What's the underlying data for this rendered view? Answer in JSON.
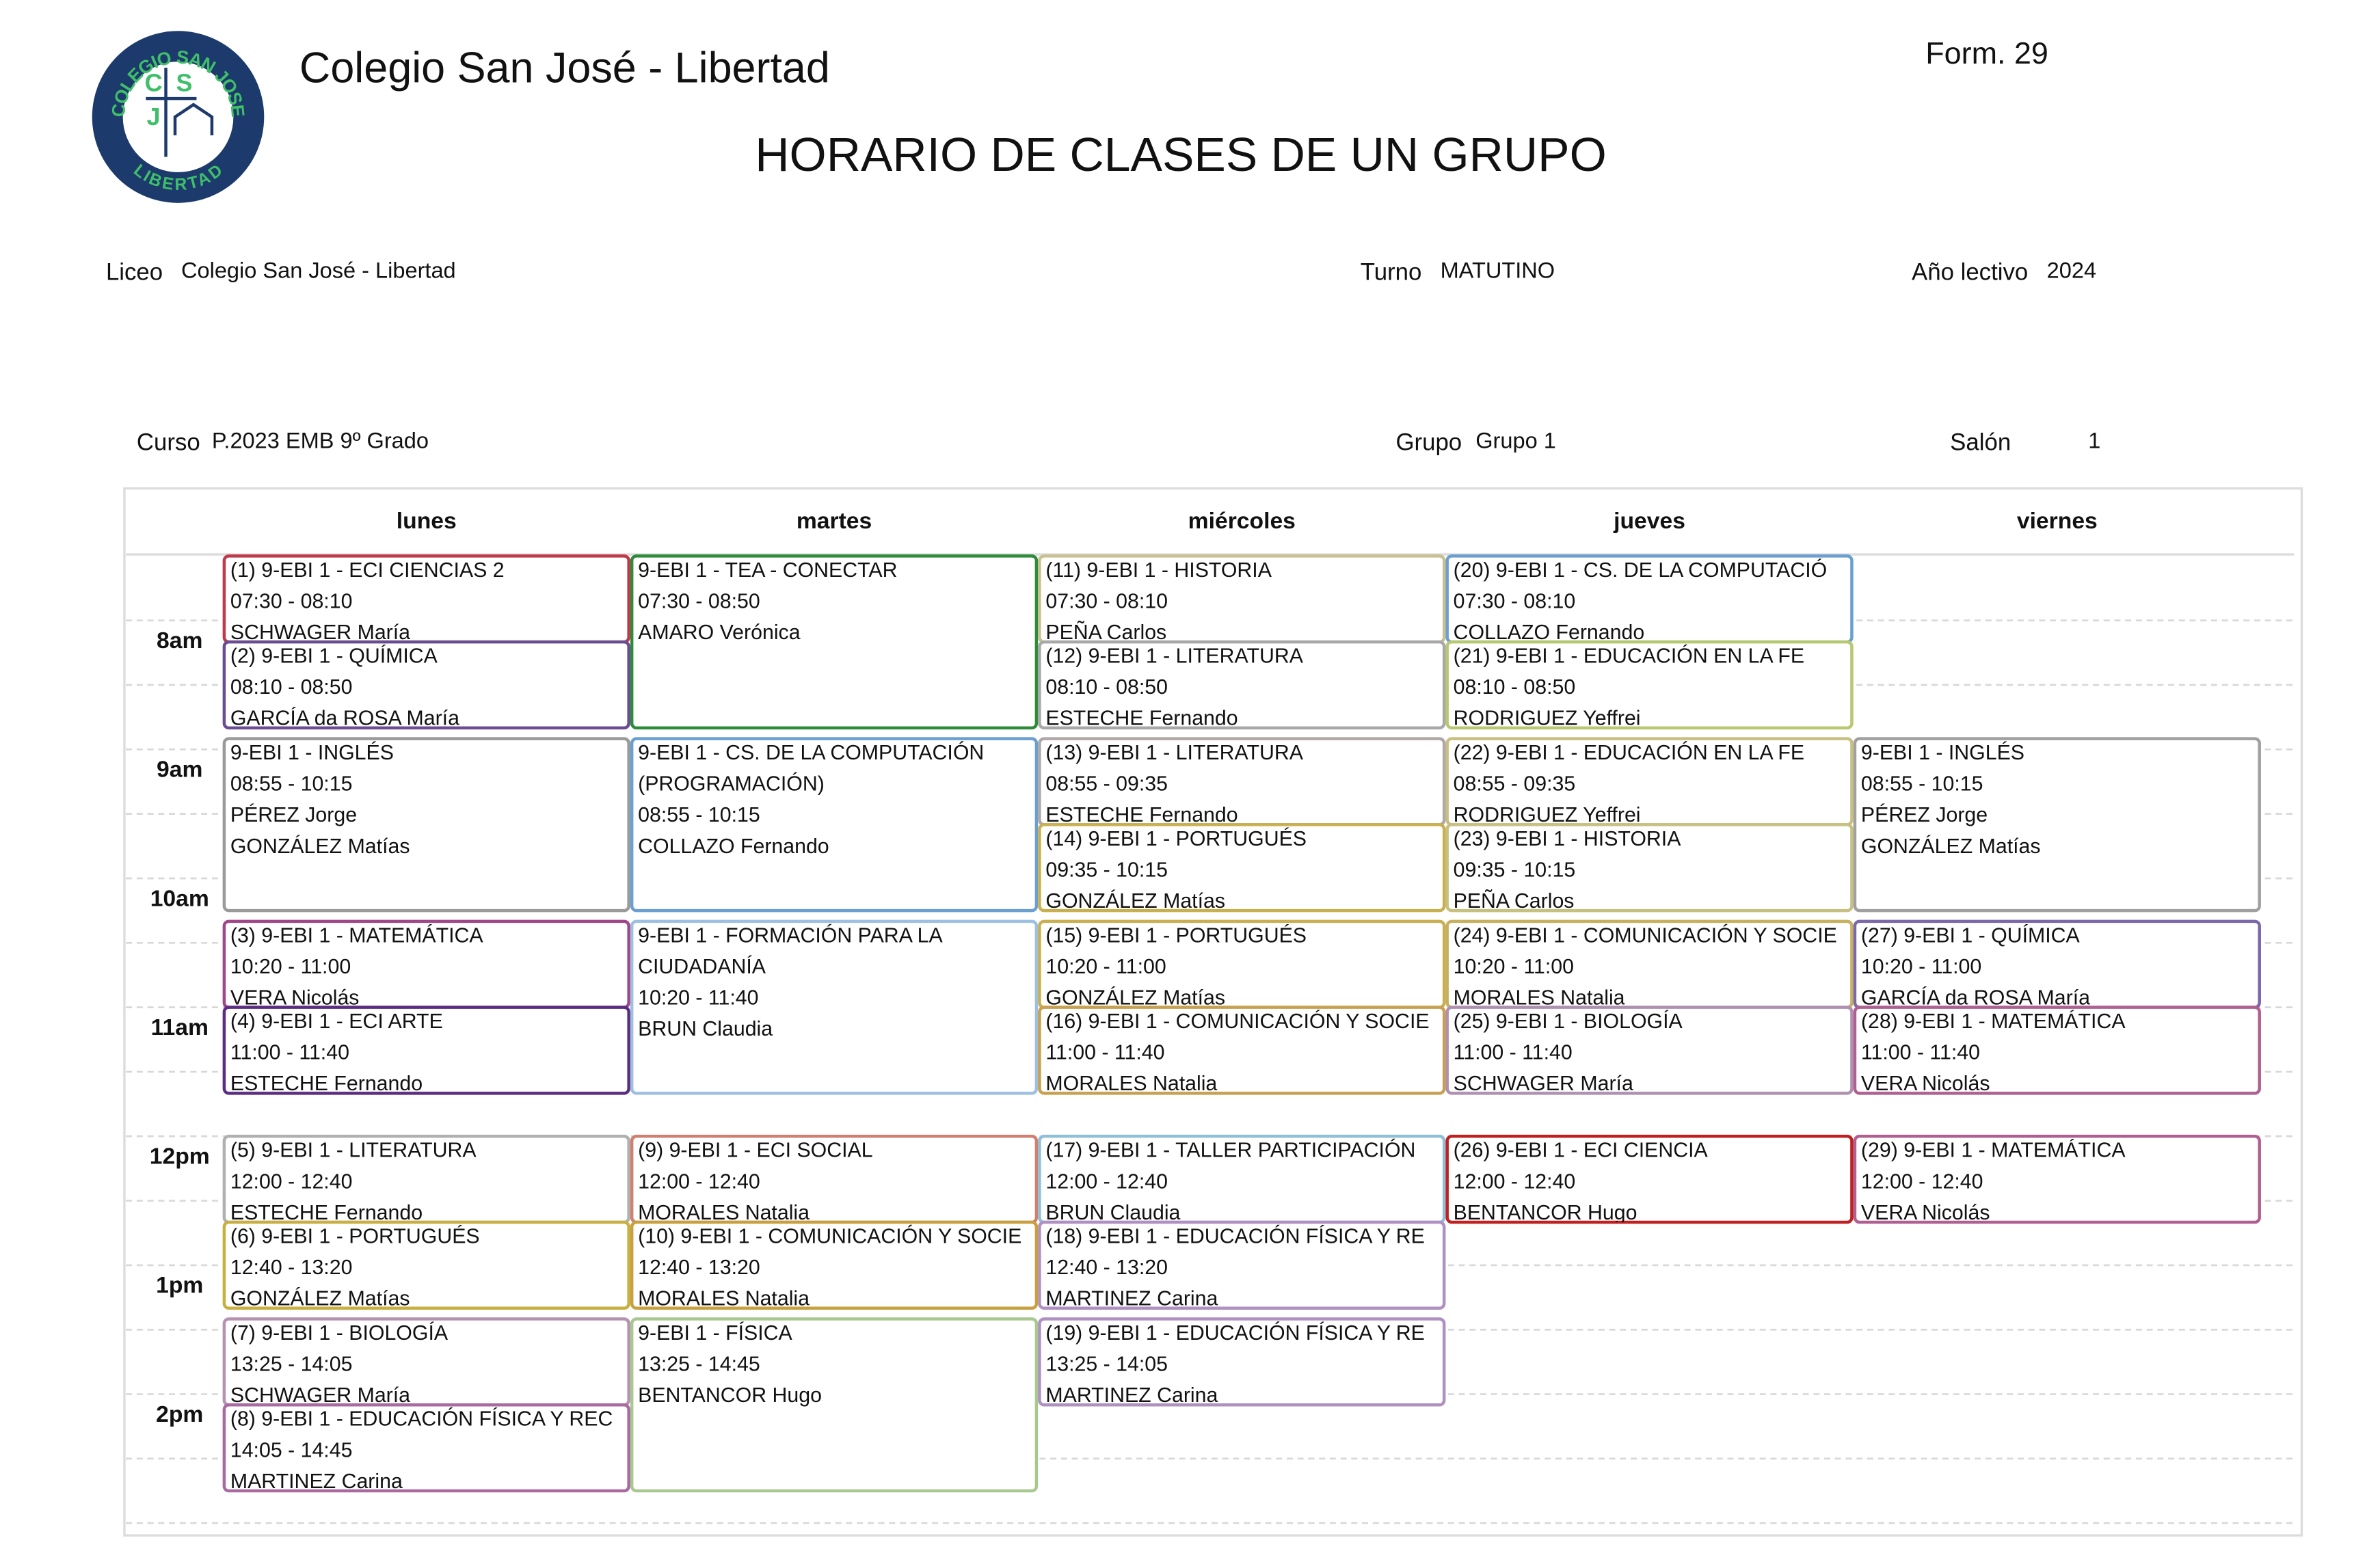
{
  "header": {
    "school": "Colegio San José - Libertad",
    "form": "Form. 29",
    "title": "HORARIO DE CLASES DE UN GRUPO",
    "logo": {
      "top": "COLEGIO SAN JOSE",
      "bottom": "LIBERTAD",
      "c": "C",
      "s": "S",
      "j": "J"
    }
  },
  "fields": {
    "liceo": {
      "label": "Liceo",
      "value": "Colegio San José - Libertad"
    },
    "turno": {
      "label": "Turno",
      "value": "MATUTINO"
    },
    "anio": {
      "label": "Año lectivo",
      "value": "2024"
    },
    "curso": {
      "label": "Curso",
      "value": "P.2023 EMB 9º Grado"
    },
    "grupo": {
      "label": "Grupo",
      "value": "Grupo 1"
    },
    "salon": {
      "label": "Salón",
      "value": "1"
    }
  },
  "days": [
    "lunes",
    "martes",
    "miércoles",
    "jueves",
    "viernes"
  ],
  "hours": [
    "8am",
    "9am",
    "10am",
    "11am",
    "12pm",
    "1pm",
    "2pm"
  ],
  "events": [
    {
      "day": 0,
      "title": [
        "(1) 9-EBI 1 - ECI CIENCIAS 2"
      ],
      "time": "07:30 - 08:10",
      "teachers": [
        "SCHWAGER María"
      ],
      "color": "#c0394b"
    },
    {
      "day": 0,
      "title": [
        "(2) 9-EBI 1 - QUÍMICA"
      ],
      "time": "08:10 - 08:50",
      "teachers": [
        "GARCÍA da ROSA María"
      ],
      "color": "#6a4c93"
    },
    {
      "day": 0,
      "title": [
        "9-EBI 1 - INGLÉS"
      ],
      "time": "08:55 - 10:15",
      "teachers": [
        "PÉREZ Jorge",
        "GONZÁLEZ Matías"
      ],
      "color": "#9a9a9a"
    },
    {
      "day": 0,
      "title": [
        "(3) 9-EBI 1 - MATEMÁTICA"
      ],
      "time": "10:20 - 11:00",
      "teachers": [
        "VERA Nicolás"
      ],
      "color": "#a0478a"
    },
    {
      "day": 0,
      "title": [
        "(4) 9-EBI 1 - ECI ARTE"
      ],
      "time": "11:00 - 11:40",
      "teachers": [
        "ESTECHE Fernando"
      ],
      "color": "#5b2d82"
    },
    {
      "day": 0,
      "title": [
        "(5) 9-EBI 1 - LITERATURA"
      ],
      "time": "12:00 - 12:40",
      "teachers": [
        "ESTECHE Fernando"
      ],
      "color": "#b0b0b0"
    },
    {
      "day": 0,
      "title": [
        "(6) 9-EBI 1 - PORTUGUÉS"
      ],
      "time": "12:40 - 13:20",
      "teachers": [
        "GONZÁLEZ Matías"
      ],
      "color": "#c8b040"
    },
    {
      "day": 0,
      "title": [
        "(7) 9-EBI 1 - BIOLOGÍA"
      ],
      "time": "13:25 - 14:05",
      "teachers": [
        "SCHWAGER María"
      ],
      "color": "#b592b0"
    },
    {
      "day": 0,
      "title": [
        "(8) 9-EBI 1 - EDUCACIÓN FÍSICA Y REC"
      ],
      "time": "14:05 - 14:45",
      "teachers": [
        "MARTINEZ Carina"
      ],
      "color": "#a86aa0"
    },
    {
      "day": 1,
      "title": [
        "9-EBI 1 - TEA - CONECTAR"
      ],
      "time": "07:30 - 08:50",
      "teachers": [
        "AMARO Verónica"
      ],
      "color": "#2e8b3a"
    },
    {
      "day": 1,
      "title": [
        "9-EBI 1 - CS. DE LA COMPUTACIÓN",
        "(PROGRAMACIÓN)"
      ],
      "time": "08:55 - 10:15",
      "teachers": [
        "COLLAZO Fernando"
      ],
      "color": "#6a9fd0"
    },
    {
      "day": 1,
      "title": [
        "9-EBI 1 - FORMACIÓN PARA LA",
        "CIUDADANÍA"
      ],
      "time": "10:20 - 11:40",
      "teachers": [
        "BRUN Claudia"
      ],
      "color": "#9ec0e0"
    },
    {
      "day": 1,
      "title": [
        "(9) 9-EBI 1 - ECI SOCIAL"
      ],
      "time": "12:00 - 12:40",
      "teachers": [
        "MORALES Natalia"
      ],
      "color": "#d08070"
    },
    {
      "day": 1,
      "title": [
        "(10) 9-EBI 1 - COMUNICACIÓN Y SOCIE"
      ],
      "time": "12:40 - 13:20",
      "teachers": [
        "MORALES Natalia"
      ],
      "color": "#c8a040"
    },
    {
      "day": 1,
      "title": [
        "9-EBI 1 - FÍSICA"
      ],
      "time": "13:25 - 14:45",
      "teachers": [
        "BENTANCOR Hugo"
      ],
      "color": "#a8c890"
    },
    {
      "day": 2,
      "title": [
        "(11) 9-EBI 1 - HISTORIA"
      ],
      "time": "07:30 - 08:10",
      "teachers": [
        "PEÑA Carlos"
      ],
      "color": "#c8c090"
    },
    {
      "day": 2,
      "title": [
        "(12) 9-EBI 1 - LITERATURA"
      ],
      "time": "08:10 - 08:50",
      "teachers": [
        "ESTECHE Fernando"
      ],
      "color": "#a8a8a8"
    },
    {
      "day": 2,
      "title": [
        "(13) 9-EBI 1 - LITERATURA"
      ],
      "time": "08:55 - 09:35",
      "teachers": [
        "ESTECHE Fernando"
      ],
      "color": "#b0a8a8"
    },
    {
      "day": 2,
      "title": [
        "(14) 9-EBI 1 - PORTUGUÉS"
      ],
      "time": "09:35 - 10:15",
      "teachers": [
        "GONZÁLEZ Matías"
      ],
      "color": "#c8b050"
    },
    {
      "day": 2,
      "title": [
        "(15) 9-EBI 1 - PORTUGUÉS"
      ],
      "time": "10:20 - 11:00",
      "teachers": [
        "GONZÁLEZ Matías"
      ],
      "color": "#c8b050"
    },
    {
      "day": 2,
      "title": [
        "(16) 9-EBI 1 - COMUNICACIÓN Y SOCIE"
      ],
      "time": "11:00 - 11:40",
      "teachers": [
        "MORALES Natalia"
      ],
      "color": "#c8a050"
    },
    {
      "day": 2,
      "title": [
        "(17) 9-EBI 1 - TALLER PARTICIPACIÓN"
      ],
      "time": "12:00 - 12:40",
      "teachers": [
        "BRUN Claudia"
      ],
      "color": "#90c0d8"
    },
    {
      "day": 2,
      "title": [
        "(18) 9-EBI 1 - EDUCACIÓN FÍSICA Y RE"
      ],
      "time": "12:40 - 13:20",
      "teachers": [
        "MARTINEZ Carina"
      ],
      "color": "#b090c0"
    },
    {
      "day": 2,
      "title": [
        "(19) 9-EBI 1 - EDUCACIÓN FÍSICA Y RE"
      ],
      "time": "13:25 - 14:05",
      "teachers": [
        "MARTINEZ Carina"
      ],
      "color": "#b090c0"
    },
    {
      "day": 3,
      "title": [
        "(20) 9-EBI 1 - CS. DE LA COMPUTACIÓ"
      ],
      "time": "07:30 - 08:10",
      "teachers": [
        "COLLAZO Fernando"
      ],
      "color": "#6a9fd0"
    },
    {
      "day": 3,
      "title": [
        "(21) 9-EBI 1 - EDUCACIÓN EN LA FE"
      ],
      "time": "08:10 - 08:50",
      "teachers": [
        "RODRIGUEZ Yeffrei"
      ],
      "color": "#b8c870"
    },
    {
      "day": 3,
      "title": [
        "(22) 9-EBI 1 - EDUCACIÓN EN LA FE"
      ],
      "time": "08:55 - 09:35",
      "teachers": [
        "RODRIGUEZ Yeffrei"
      ],
      "color": "#c8c080"
    },
    {
      "day": 3,
      "title": [
        "(23) 9-EBI 1 - HISTORIA"
      ],
      "time": "09:35 - 10:15",
      "teachers": [
        "PEÑA Carlos"
      ],
      "color": "#c8c080"
    },
    {
      "day": 3,
      "title": [
        "(24) 9-EBI 1 - COMUNICACIÓN Y SOCIE"
      ],
      "time": "10:20 - 11:00",
      "teachers": [
        "MORALES Natalia"
      ],
      "color": "#c8b060"
    },
    {
      "day": 3,
      "title": [
        "(25) 9-EBI 1 - BIOLOGÍA"
      ],
      "time": "11:00 - 11:40",
      "teachers": [
        "SCHWAGER María"
      ],
      "color": "#b090b0"
    },
    {
      "day": 3,
      "title": [
        "(26) 9-EBI 1 - ECI CIENCIA"
      ],
      "time": "12:00 - 12:40",
      "teachers": [
        "BENTANCOR Hugo"
      ],
      "color": "#c02020"
    },
    {
      "day": 4,
      "title": [
        "9-EBI 1 - INGLÉS"
      ],
      "time": "08:55 - 10:15",
      "teachers": [
        "PÉREZ Jorge",
        "GONZÁLEZ Matías"
      ],
      "color": "#a0a0a0"
    },
    {
      "day": 4,
      "title": [
        "(27) 9-EBI 1 - QUÍMICA"
      ],
      "time": "10:20 - 11:00",
      "teachers": [
        "GARCÍA da ROSA María"
      ],
      "color": "#7a68a8"
    },
    {
      "day": 4,
      "title": [
        "(28) 9-EBI 1 - MATEMÁTICA"
      ],
      "time": "11:00 - 11:40",
      "teachers": [
        "VERA Nicolás"
      ],
      "color": "#b06090"
    },
    {
      "day": 4,
      "title": [
        "(29) 9-EBI 1 - MATEMÁTICA"
      ],
      "time": "12:00 - 12:40",
      "teachers": [
        "VERA Nicolás"
      ],
      "color": "#b06090"
    }
  ]
}
